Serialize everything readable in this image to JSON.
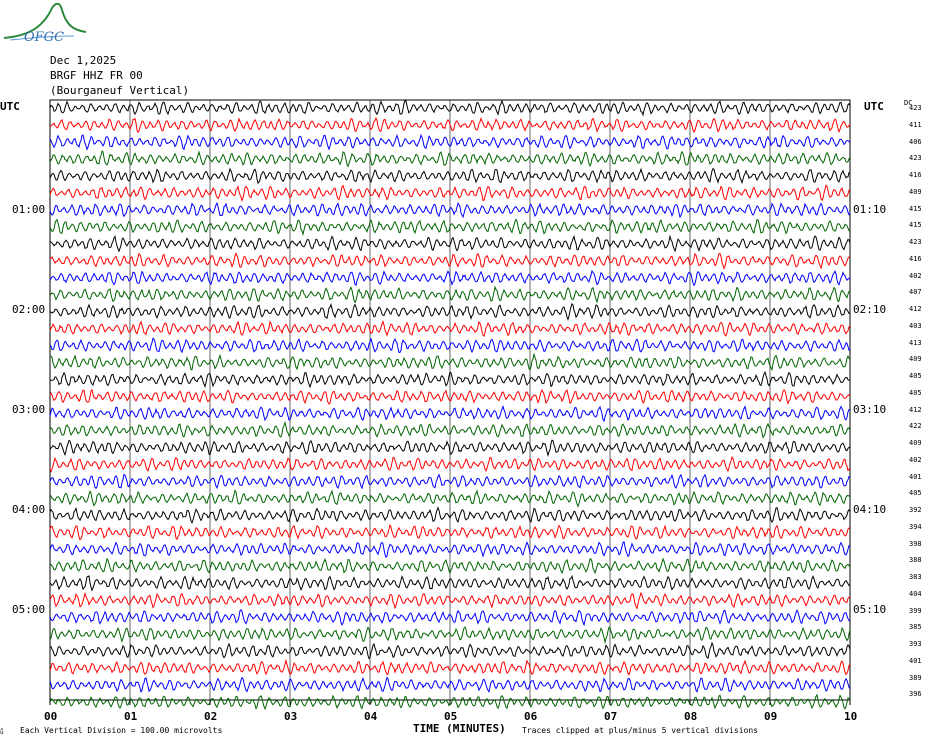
{
  "logo": {
    "text": "OFGC",
    "color": "#2a8a3a"
  },
  "header": {
    "date": "Dec 1,2025",
    "station": "BRGF HHZ FR 00",
    "location": "(Bourganeuf Vertical)"
  },
  "utc_left": "UTC",
  "utc_right": "UTC",
  "dc_label": "DC",
  "left_hour_labels": [
    "01:00",
    "02:00",
    "03:00",
    "04:00",
    "05:00"
  ],
  "right_hour_labels": [
    "01:10",
    "02:10",
    "03:10",
    "04:10",
    "05:10"
  ],
  "dc_values": [
    "423",
    "411",
    "406",
    "423",
    "416",
    "409",
    "415",
    "415",
    "423",
    "416",
    "402",
    "407",
    "412",
    "403",
    "413",
    "409",
    "405",
    "405",
    "412",
    "422",
    "409",
    "402",
    "401",
    "405",
    "392",
    "394",
    "398",
    "388",
    "383",
    "404",
    "399",
    "385",
    "393",
    "401",
    "389",
    "396"
  ],
  "footer": {
    "vertical_division": "Each Vertical Division =  100.00 microvolts",
    "x_title": "TIME (MINUTES)",
    "clip_note": "Traces clipped at plus/minus 5 vertical divisions",
    "corner_mark": "ǚ"
  },
  "colors": {
    "trace_cycle": [
      "#000000",
      "#ff0000",
      "#0000ff",
      "#006400"
    ],
    "grid": "#000000"
  },
  "chart_data": {
    "type": "line",
    "title": "",
    "xlabel": "TIME (MINUTES)",
    "ylabel": "",
    "xlim": [
      0,
      10
    ],
    "x_ticks": [
      "00",
      "01",
      "02",
      "03",
      "04",
      "05",
      "06",
      "07",
      "08",
      "09",
      "10"
    ],
    "row_count": 36,
    "row_interval_minutes": 10,
    "start_time_utc": "00:00",
    "trace_color_cycle": [
      "black",
      "red",
      "blue",
      "green"
    ]
  }
}
